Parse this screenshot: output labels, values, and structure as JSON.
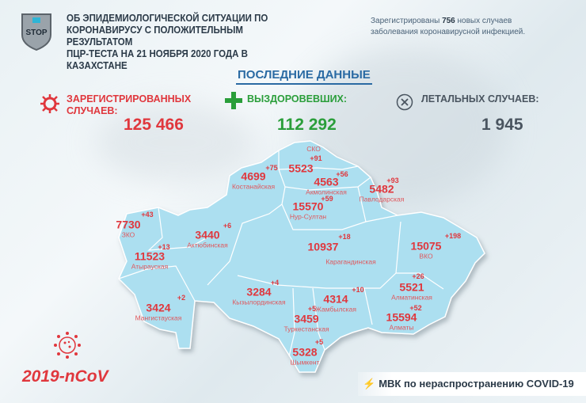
{
  "header": {
    "title_lines": [
      "ОБ ЭПИДЕМИОЛОГИЧЕСКОЙ СИТУАЦИИ ПО",
      "КОРОНАВИРУСУ С ПОЛОЖИТЕЛЬНЫМ РЕЗУЛЬТАТОМ",
      "ПЦР-ТЕСТА НА 21 НОЯБРЯ 2020 ГОДА В КАЗАХСТАНЕ"
    ],
    "note_prefix": "Зарегистрированы ",
    "note_count": "756",
    "note_suffix": " новых случаев заболевания коронавирусной инфекцией.",
    "logo_text": "STOP"
  },
  "latest_label": "ПОСЛЕДНИЕ ДАННЫЕ",
  "stats": {
    "registered": {
      "label": "ЗАРЕГИСТРИРОВАННЫХ СЛУЧАЕВ:",
      "value": "125 466",
      "icon": "virus-icon"
    },
    "recovered": {
      "label": "ВЫЗДОРОВЕВШИХ:",
      "value": "112 292",
      "icon": "plus-icon"
    },
    "deaths": {
      "label": "ЛЕТАЛЬНЫХ СЛУЧАЕВ:",
      "value": "1 945",
      "icon": "circle-x-icon"
    }
  },
  "regions": [
    {
      "name": "СКО",
      "total": "5523",
      "delta": "+91"
    },
    {
      "name": "Костанайская",
      "total": "4699",
      "delta": "+75"
    },
    {
      "name": "Акмолинская",
      "total": "4563",
      "delta": "+56"
    },
    {
      "name": "Павлодарская",
      "total": "5482",
      "delta": "+93"
    },
    {
      "name": "Нур-Султан",
      "total": "15570",
      "delta": "+59"
    },
    {
      "name": "ЗКО",
      "total": "7730",
      "delta": "+43"
    },
    {
      "name": "Актюбинская",
      "total": "3440",
      "delta": "+6"
    },
    {
      "name": "Карагандинская",
      "total": "10937",
      "delta": "+18"
    },
    {
      "name": "ВКО",
      "total": "15075",
      "delta": "+198"
    },
    {
      "name": "Атырауская",
      "total": "11523",
      "delta": "+13"
    },
    {
      "name": "Кызылординская",
      "total": "3284",
      "delta": "+4"
    },
    {
      "name": "Мангистауская",
      "total": "3424",
      "delta": "+2"
    },
    {
      "name": "Жамбылская",
      "total": "4314",
      "delta": "+10"
    },
    {
      "name": "Туркестанская",
      "total": "3459",
      "delta": "+5"
    },
    {
      "name": "Алматинская",
      "total": "5521",
      "delta": "+26"
    },
    {
      "name": "Алматы",
      "total": "15594",
      "delta": "+52"
    },
    {
      "name": "Шымкент",
      "total": "5328",
      "delta": "+5"
    }
  ],
  "footer": {
    "ncov": "2019-nCoV",
    "source": "МВК по нераспространению COVID-19"
  },
  "colors": {
    "red": "#e0373d",
    "green": "#2a9e3a",
    "blue": "#2a6aa3",
    "map": "#acdff0"
  }
}
